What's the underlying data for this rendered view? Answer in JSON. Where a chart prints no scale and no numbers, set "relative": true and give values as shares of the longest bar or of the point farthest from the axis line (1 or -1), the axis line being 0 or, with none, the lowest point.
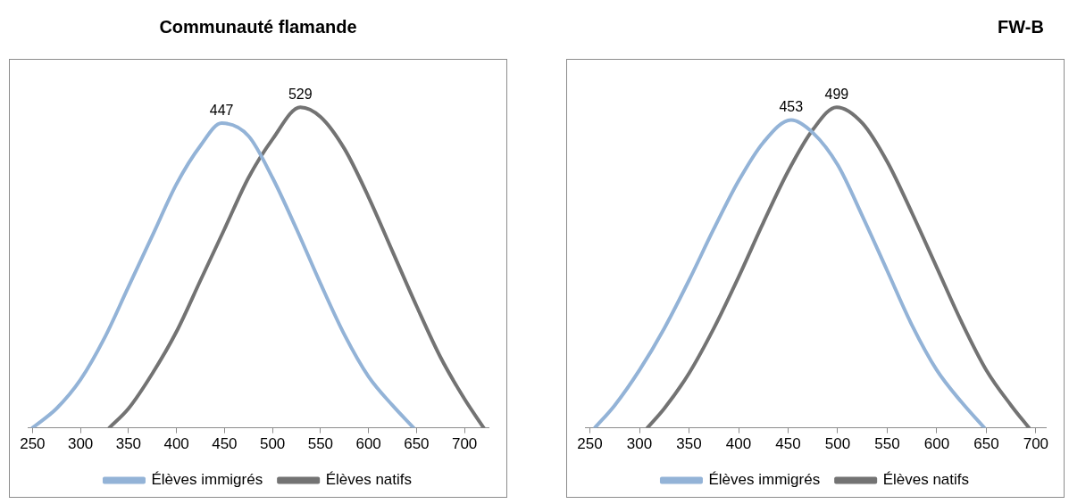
{
  "chart_data": [
    {
      "type": "line",
      "title": "Communauté flamande",
      "relative": true,
      "xlim": [
        245,
        725
      ],
      "xticks": [
        250,
        300,
        350,
        400,
        450,
        500,
        550,
        600,
        650,
        700
      ],
      "grid": false,
      "legend": "bottom",
      "marker": "none",
      "line_style": "solid",
      "series": [
        {
          "name": "Élèves immigrés",
          "color": "#93b3d7",
          "x": [
            250,
            275,
            300,
            325,
            350,
            375,
            400,
            425,
            447,
            475,
            500,
            525,
            550,
            575,
            600,
            625,
            647
          ],
          "values": [
            0,
            0.06,
            0.15,
            0.28,
            0.44,
            0.6,
            0.76,
            0.88,
            0.95,
            0.91,
            0.78,
            0.62,
            0.45,
            0.29,
            0.16,
            0.07,
            0
          ]
        },
        {
          "name": "Élèves natifs",
          "color": "#737373",
          "x": [
            330,
            350,
            375,
            400,
            425,
            450,
            475,
            500,
            529,
            550,
            575,
            600,
            625,
            650,
            675,
            700,
            720
          ],
          "values": [
            0,
            0.06,
            0.17,
            0.3,
            0.46,
            0.62,
            0.78,
            0.9,
            1,
            0.97,
            0.87,
            0.72,
            0.55,
            0.38,
            0.22,
            0.09,
            0
          ]
        }
      ],
      "annotations": [
        {
          "text": "447",
          "x": 447,
          "y": 0.95
        },
        {
          "text": "529",
          "x": 529,
          "y": 1
        }
      ]
    },
    {
      "type": "line",
      "title": "FW-B",
      "relative": true,
      "xlim": [
        245,
        710
      ],
      "xticks": [
        250,
        300,
        350,
        400,
        450,
        500,
        550,
        600,
        650,
        700
      ],
      "grid": false,
      "legend": "bottom",
      "marker": "none",
      "line_style": "solid",
      "series": [
        {
          "name": "Élèves immigrés",
          "color": "#93b3d7",
          "x": [
            255,
            275,
            300,
            325,
            350,
            375,
            400,
            425,
            453,
            475,
            500,
            525,
            550,
            575,
            600,
            625,
            648
          ],
          "values": [
            0,
            0.07,
            0.18,
            0.31,
            0.46,
            0.62,
            0.77,
            0.89,
            0.96,
            0.92,
            0.82,
            0.66,
            0.49,
            0.32,
            0.18,
            0.08,
            0
          ]
        },
        {
          "name": "Élèves natifs",
          "color": "#737373",
          "x": [
            308,
            325,
            350,
            375,
            400,
            425,
            450,
            475,
            499,
            525,
            550,
            575,
            600,
            625,
            650,
            675,
            693
          ],
          "values": [
            0,
            0.06,
            0.17,
            0.31,
            0.47,
            0.64,
            0.8,
            0.93,
            1,
            0.95,
            0.83,
            0.67,
            0.5,
            0.33,
            0.18,
            0.07,
            0
          ]
        }
      ],
      "annotations": [
        {
          "text": "453",
          "x": 453,
          "y": 0.96
        },
        {
          "text": "499",
          "x": 499,
          "y": 1
        }
      ]
    }
  ]
}
